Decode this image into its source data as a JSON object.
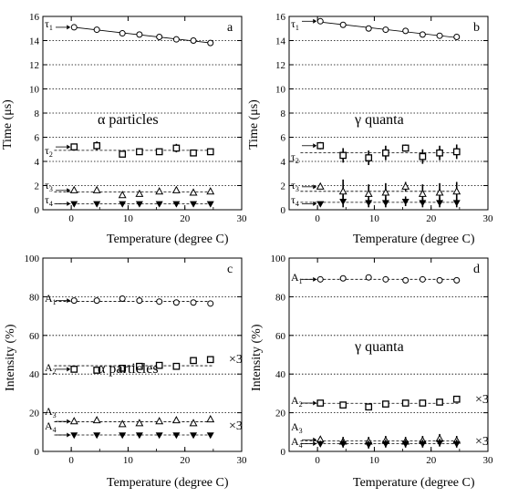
{
  "chart_data": [
    {
      "id": "a",
      "type": "scatter",
      "panel_label": "a",
      "caption": "α particles",
      "xlabel": "Temperature (degree C)",
      "ylabel": "Time (μs)",
      "xlim": [
        -5,
        30
      ],
      "ylim": [
        0,
        16
      ],
      "xticks": [
        "0",
        "10",
        "20",
        "30"
      ],
      "yticks": [
        "0",
        "2",
        "4",
        "6",
        "8",
        "10",
        "12",
        "14",
        "16"
      ],
      "grid": "horizontal dotted",
      "series": [
        {
          "label": "τ1",
          "marker": "circle",
          "fit": "solid",
          "x": [
            0.5,
            4.5,
            9,
            12,
            15.5,
            18.5,
            21.5,
            24.5
          ],
          "y": [
            15.1,
            14.9,
            14.6,
            14.5,
            14.3,
            14.1,
            14.0,
            13.8
          ],
          "err": []
        },
        {
          "label": "τ2",
          "marker": "square",
          "fit": "dashed",
          "x": [
            0.5,
            4.5,
            9,
            12,
            15.5,
            18.5,
            21.5,
            24.5
          ],
          "y": [
            5.2,
            5.3,
            4.6,
            4.8,
            4.8,
            5.1,
            4.7,
            4.8
          ],
          "err": [
            0.25,
            0.35,
            0.25,
            0.25,
            0.25,
            0.35,
            0.25,
            0.25
          ]
        },
        {
          "label": "τ3",
          "marker": "triangle-up",
          "fit": "dashed",
          "x": [
            0.5,
            4.5,
            9,
            12,
            15.5,
            18.5,
            21.5,
            24.5
          ],
          "y": [
            1.6,
            1.6,
            1.2,
            1.3,
            1.5,
            1.6,
            1.4,
            1.5
          ],
          "err": []
        },
        {
          "label": "τ4",
          "marker": "triangle-down-filled",
          "fit": "dashed",
          "x": [
            0.5,
            4.5,
            9,
            12,
            15.5,
            18.5,
            21.5,
            24.5
          ],
          "y": [
            0.5,
            0.5,
            0.5,
            0.5,
            0.5,
            0.5,
            0.5,
            0.5
          ],
          "err": []
        }
      ]
    },
    {
      "id": "b",
      "type": "scatter",
      "panel_label": "b",
      "caption": "γ quanta",
      "xlabel": "Temperature (degree C)",
      "ylabel": "Time (μs)",
      "xlim": [
        -5,
        30
      ],
      "ylim": [
        0,
        16
      ],
      "xticks": [
        "0",
        "10",
        "20",
        "30"
      ],
      "yticks": [
        "0",
        "2",
        "4",
        "6",
        "8",
        "10",
        "12",
        "14",
        "16"
      ],
      "grid": "horizontal dotted",
      "series": [
        {
          "label": "τ1",
          "marker": "circle",
          "fit": "solid",
          "x": [
            0.5,
            4.5,
            9,
            12,
            15.5,
            18.5,
            21.5,
            24.5
          ],
          "y": [
            15.6,
            15.3,
            15.0,
            14.9,
            14.8,
            14.5,
            14.4,
            14.3
          ],
          "err": []
        },
        {
          "label": "τ2",
          "marker": "square",
          "fit": "dashed",
          "x": [
            0.5,
            4.5,
            9,
            12,
            15.5,
            18.5,
            21.5,
            24.5
          ],
          "y": [
            5.3,
            4.5,
            4.3,
            4.7,
            5.1,
            4.4,
            4.7,
            4.8
          ],
          "err": [
            0.3,
            0.6,
            0.6,
            0.6,
            0.3,
            0.6,
            0.6,
            0.6
          ]
        },
        {
          "label": "τ3",
          "marker": "triangle-up",
          "fit": "dashed",
          "x": [
            0.5,
            4.5,
            9,
            12,
            15.5,
            18.5,
            21.5,
            24.5
          ],
          "y": [
            1.9,
            1.5,
            1.3,
            1.4,
            1.9,
            1.3,
            1.4,
            1.5
          ],
          "err": [
            0.2,
            1.0,
            0.8,
            0.8,
            0.4,
            0.8,
            0.8,
            0.8
          ]
        },
        {
          "label": "τ4",
          "marker": "triangle-down-filled",
          "fit": "dashed",
          "x": [
            0.5,
            4.5,
            9,
            12,
            15.5,
            18.5,
            21.5,
            24.5
          ],
          "y": [
            0.5,
            0.7,
            0.6,
            0.6,
            0.7,
            0.6,
            0.6,
            0.6
          ],
          "err": [
            0.1,
            0.5,
            0.4,
            0.4,
            0.4,
            0.4,
            0.4,
            0.4
          ]
        }
      ]
    },
    {
      "id": "c",
      "type": "scatter",
      "panel_label": "c",
      "caption": "α particles",
      "xlabel": "Temperature (degree C)",
      "ylabel": "Intensity (%)",
      "xlim": [
        -5,
        30
      ],
      "ylim": [
        0,
        100
      ],
      "xticks": [
        "0",
        "10",
        "20",
        "30"
      ],
      "yticks": [
        "0",
        "20",
        "40",
        "60",
        "80",
        "100"
      ],
      "grid": "horizontal dotted",
      "annotations": [
        "×3",
        "×3"
      ],
      "series": [
        {
          "label": "A1",
          "marker": "circle",
          "fit": "dashed",
          "x": [
            0.5,
            4.5,
            9,
            12,
            15.5,
            18.5,
            21.5,
            24.5
          ],
          "y": [
            78,
            78,
            79,
            78,
            77.5,
            77,
            77,
            76.5
          ],
          "err": []
        },
        {
          "label": "A2",
          "marker": "square",
          "fit": "dashed",
          "x": [
            0.5,
            4.5,
            9,
            12,
            15.5,
            18.5,
            21.5,
            24.5
          ],
          "y": [
            42.5,
            42,
            43,
            44,
            44.5,
            44,
            47,
            47.5
          ],
          "err": []
        },
        {
          "label": "A3",
          "marker": "triangle-up",
          "fit": "dashed",
          "x": [
            0.5,
            4.5,
            9,
            12,
            15.5,
            18.5,
            21.5,
            24.5
          ],
          "y": [
            15.5,
            16,
            14,
            14.5,
            15.5,
            16,
            14.5,
            16.5
          ],
          "err": []
        },
        {
          "label": "A4",
          "marker": "triangle-down-filled",
          "fit": "dashed",
          "x": [
            0.5,
            4.5,
            9,
            12,
            15.5,
            18.5,
            21.5,
            24.5
          ],
          "y": [
            8.5,
            8.5,
            8.5,
            8.5,
            8.5,
            8.5,
            8.5,
            8.5
          ],
          "err": []
        }
      ]
    },
    {
      "id": "d",
      "type": "scatter",
      "panel_label": "d",
      "caption": "γ quanta",
      "xlabel": "Temperature (degree C)",
      "ylabel": "Intensity (%)",
      "xlim": [
        -5,
        30
      ],
      "ylim": [
        0,
        100
      ],
      "xticks": [
        "0",
        "10",
        "20",
        "30"
      ],
      "yticks": [
        "0",
        "20",
        "40",
        "60",
        "80",
        "100"
      ],
      "grid": "horizontal dotted",
      "annotations": [
        "×3",
        "×3"
      ],
      "series": [
        {
          "label": "A1",
          "marker": "circle",
          "fit": "dashed",
          "x": [
            0.5,
            4.5,
            9,
            12,
            15.5,
            18.5,
            21.5,
            24.5
          ],
          "y": [
            89,
            89.5,
            90,
            89,
            88.5,
            89,
            88.5,
            88.5
          ],
          "err": []
        },
        {
          "label": "A2",
          "marker": "square",
          "fit": "dashed",
          "x": [
            0.5,
            4.5,
            9,
            12,
            15.5,
            18.5,
            21.5,
            24.5
          ],
          "y": [
            25,
            24,
            23,
            24.5,
            25,
            25,
            25.5,
            27
          ],
          "err": [
            1.5,
            1.5,
            1.5,
            1.5,
            1.5,
            1.5,
            1.5,
            1.5
          ]
        },
        {
          "label": "A3",
          "marker": "triangle-up",
          "fit": "dashed",
          "x": [
            0.5,
            4.5,
            9,
            12,
            15.5,
            18.5,
            21.5,
            24.5
          ],
          "y": [
            6,
            5,
            5,
            5.5,
            5,
            5.5,
            6.5,
            5.5
          ],
          "err": [
            1.5,
            2.5,
            2.5,
            2.5,
            2.5,
            2.5,
            2.5,
            2.5
          ]
        },
        {
          "label": "A4",
          "marker": "triangle-down-filled",
          "fit": "dashed",
          "x": [
            0.5,
            4.5,
            9,
            12,
            15.5,
            18.5,
            21.5,
            24.5
          ],
          "y": [
            4,
            4,
            3.5,
            4,
            4,
            4,
            4.5,
            4
          ],
          "err": [
            1.5,
            2.0,
            2.0,
            2.0,
            2.0,
            2.0,
            2.0,
            2.0
          ]
        }
      ]
    }
  ]
}
